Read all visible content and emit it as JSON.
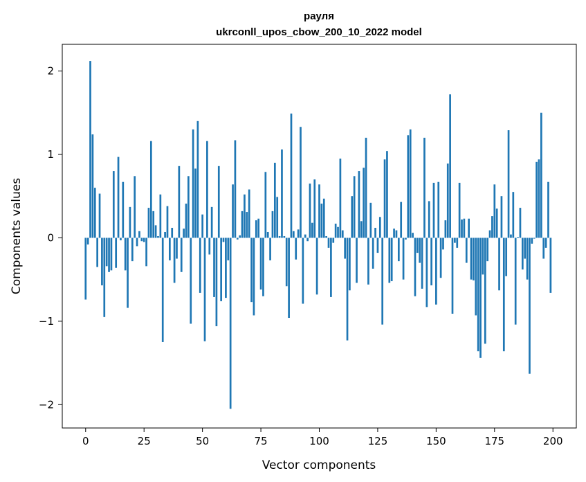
{
  "chart_data": {
    "type": "bar",
    "title": "рауля",
    "subtitle": "ukrconll_upos_cbow_200_10_2022 model",
    "xlabel": "Vector components",
    "ylabel": "Components values",
    "xlim": [
      -10,
      210
    ],
    "ylim": [
      -2.28,
      2.32
    ],
    "xticks": [
      0,
      25,
      50,
      75,
      100,
      125,
      150,
      175,
      200
    ],
    "yticks": [
      -2,
      -1,
      0,
      1,
      2
    ],
    "ytick_labels": [
      "−2",
      "−1",
      "0",
      "1",
      "2"
    ],
    "grid": false,
    "legend": "none",
    "color": "#1f77b4",
    "values": [
      -0.74,
      -0.08,
      2.12,
      1.24,
      0.6,
      -0.35,
      0.53,
      -0.57,
      -0.95,
      -0.34,
      -0.41,
      -0.39,
      0.8,
      -0.36,
      0.97,
      -0.03,
      0.67,
      -0.39,
      -0.84,
      0.37,
      -0.28,
      0.74,
      -0.1,
      0.08,
      -0.04,
      -0.05,
      -0.34,
      0.36,
      1.16,
      0.32,
      0.15,
      0.02,
      0.52,
      -1.25,
      0.07,
      0.38,
      -0.27,
      0.12,
      -0.54,
      -0.25,
      0.86,
      -0.41,
      0.11,
      0.41,
      0.74,
      -1.03,
      1.3,
      0.83,
      1.4,
      -0.66,
      0.28,
      -1.24,
      1.16,
      -0.2,
      0.37,
      -0.71,
      -1.06,
      0.86,
      -0.76,
      -0.05,
      -0.72,
      -0.27,
      -2.05,
      0.64,
      1.17,
      -0.02,
      0.03,
      0.32,
      0.52,
      0.31,
      0.58,
      -0.77,
      -0.93,
      0.21,
      0.23,
      -0.62,
      -0.7,
      0.79,
      0.07,
      -0.27,
      0.32,
      0.9,
      0.49,
      0.02,
      1.06,
      0.02,
      -0.58,
      -0.96,
      1.49,
      0.08,
      -0.26,
      0.1,
      1.33,
      -0.79,
      0.04,
      -0.04,
      0.65,
      0.18,
      0.7,
      -0.68,
      0.64,
      0.41,
      0.47,
      0.02,
      -0.12,
      -0.71,
      -0.06,
      0.17,
      0.13,
      0.95,
      0.09,
      -0.25,
      -1.23,
      -0.63,
      0.5,
      0.74,
      -0.54,
      0.8,
      0.2,
      0.84,
      1.2,
      -0.56,
      0.42,
      -0.37,
      0.12,
      -0.18,
      0.25,
      -1.04,
      0.94,
      1.04,
      -0.54,
      -0.52,
      0.11,
      0.09,
      -0.28,
      0.43,
      -0.5,
      -0.02,
      1.23,
      1.3,
      0.06,
      -0.7,
      -0.18,
      -0.3,
      -0.61,
      1.2,
      -0.83,
      0.44,
      -0.57,
      0.66,
      -0.8,
      0.67,
      -0.48,
      -0.14,
      0.21,
      0.89,
      1.72,
      -0.91,
      -0.06,
      -0.12,
      0.66,
      0.22,
      0.23,
      -0.3,
      0.23,
      -0.5,
      -0.51,
      -0.93,
      -1.36,
      -1.44,
      -0.44,
      -1.27,
      -0.28,
      0.09,
      0.26,
      0.64,
      0.35,
      -0.63,
      0.5,
      -1.36,
      -0.46,
      1.29,
      0.04,
      0.55,
      -1.04,
      0.01,
      0.36,
      -0.38,
      -0.25,
      -0.5,
      -1.63,
      -0.07,
      -0.01,
      0.91,
      0.94,
      1.5,
      -0.25,
      -0.12,
      0.67,
      -0.66
    ]
  }
}
